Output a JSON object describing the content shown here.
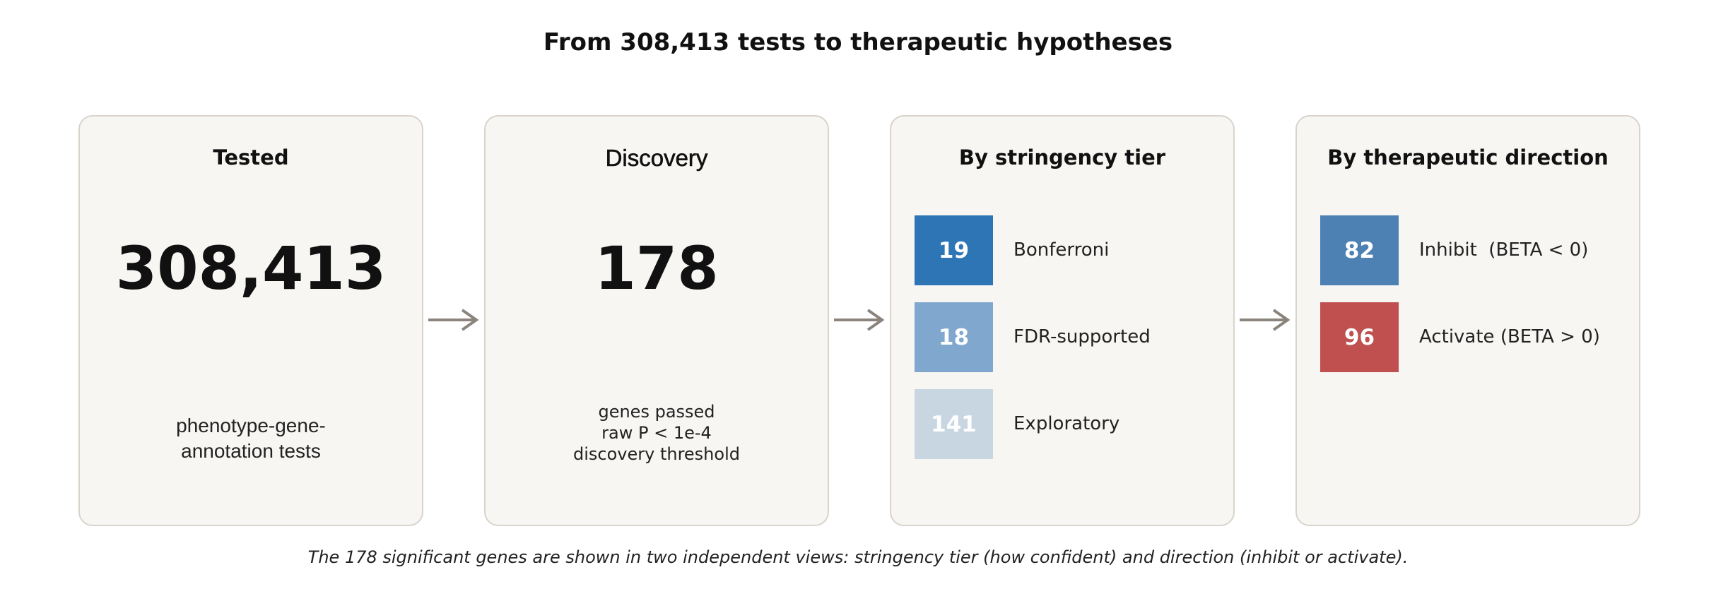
{
  "title": "From 308,413 tests to therapeutic hypotheses",
  "panels": {
    "tested": {
      "title": "Tested",
      "number": "308,413",
      "subtitle": "phenotype-gene-\nannotation tests"
    },
    "discovery": {
      "title": "Discovery",
      "number": "178",
      "subtitle": "genes passed\nraw P < 1e-4\ndiscovery threshold"
    },
    "tier": {
      "title": "By stringency tier",
      "items": [
        {
          "value": "19",
          "label": "Bonferroni",
          "color": "#2e75b6"
        },
        {
          "value": "18",
          "label": "FDR-supported",
          "color": "#80a8cf"
        },
        {
          "value": "141",
          "label": "Exploratory",
          "color": "#c8d6e2"
        }
      ]
    },
    "direction": {
      "title": "By therapeutic direction",
      "items": [
        {
          "value": "82",
          "label": "Inhibit  (BETA < 0)",
          "color": "#4d81b3"
        },
        {
          "value": "96",
          "label": "Activate (BETA > 0)",
          "color": "#c05050"
        }
      ]
    }
  },
  "arrow_color": "#8a847d",
  "caption": "The 178 significant genes are shown in two independent views: stringency tier (how confident) and direction (inhibit or activate)."
}
